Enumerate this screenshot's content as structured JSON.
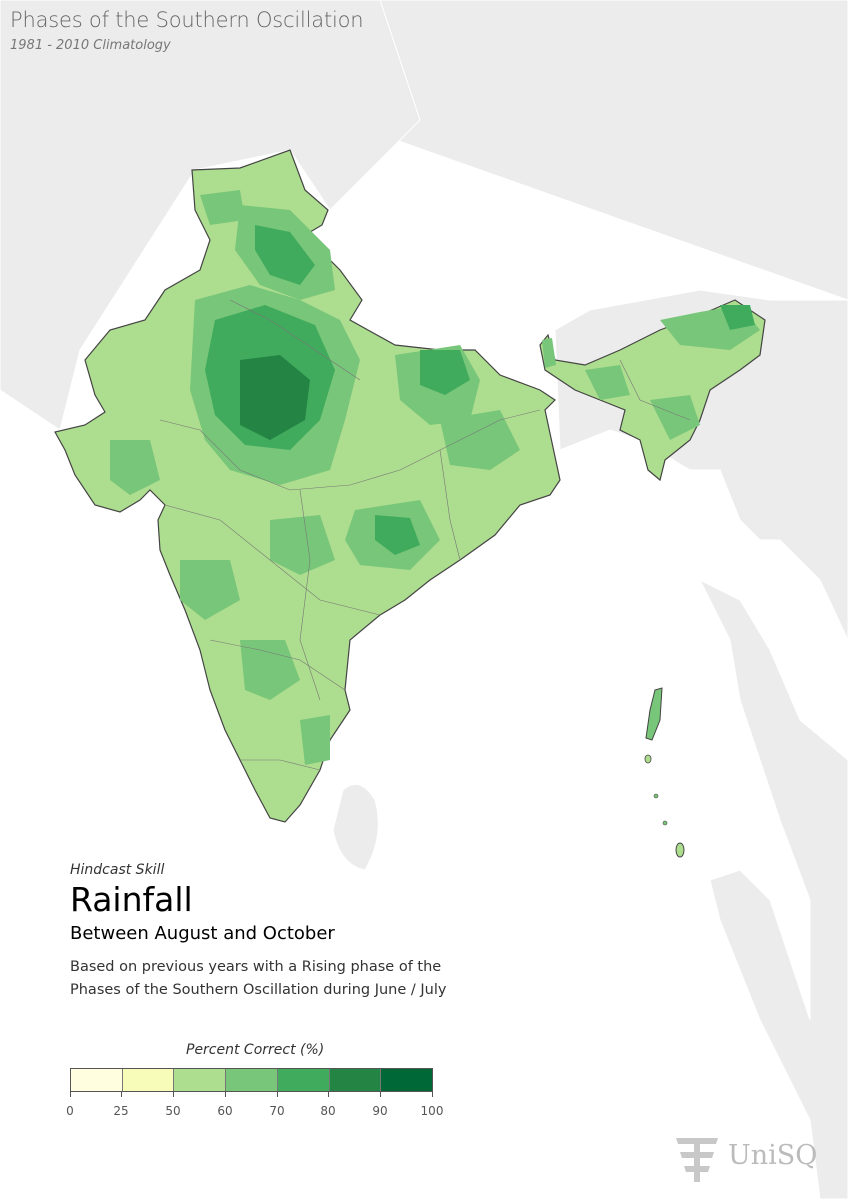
{
  "header": {
    "title": "Phases of the Southern Oscillation",
    "subtitle": "1981 - 2010 Climatology"
  },
  "info": {
    "kicker": "Hindcast Skill",
    "title": "Rainfall",
    "period": "Between August and October",
    "description_line1": "Based on previous years with a Rising phase of the",
    "description_line2": "Phases of the Southern Oscillation during June / July"
  },
  "legend": {
    "title": "Percent Correct (%)",
    "ticks": [
      "0",
      "25",
      "50",
      "60",
      "70",
      "80",
      "90",
      "100"
    ],
    "colors": [
      "#ffffe0",
      "#f7fcb9",
      "#addd8e",
      "#78c679",
      "#41ab5d",
      "#238443",
      "#006837"
    ]
  },
  "logo": {
    "text": "UniSQ"
  },
  "colors": {
    "ocean": "#ffffff",
    "land_background": "#ececec",
    "country_border": "#444444"
  }
}
